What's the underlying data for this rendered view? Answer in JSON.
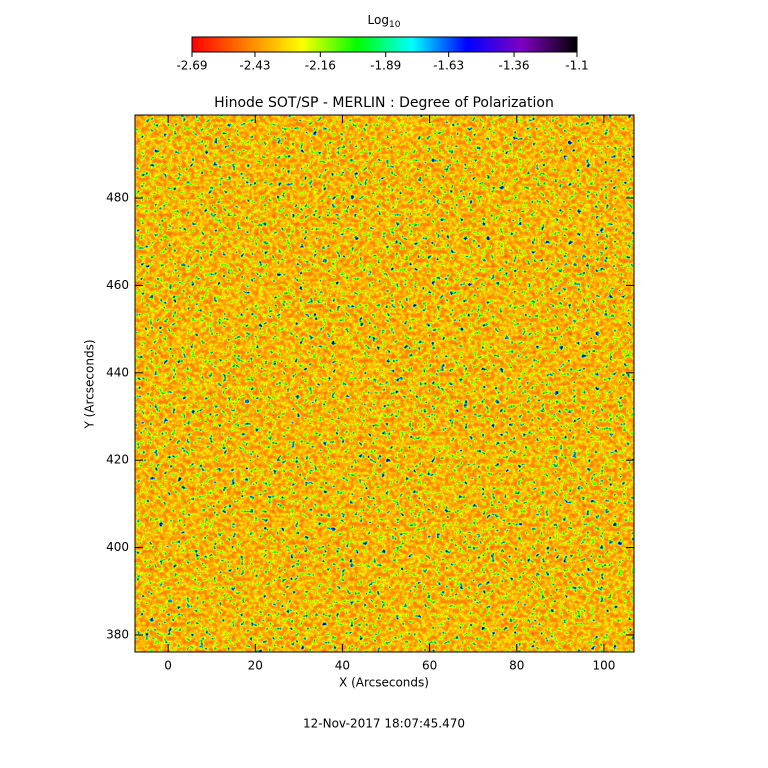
{
  "chart_data": {
    "type": "heatmap",
    "title": "Hinode SOT/SP - MERLIN : Degree of Polarization",
    "x_label": "X (Arcseconds)",
    "y_label": "Y (Arcseconds)",
    "xlim": [
      -7.6,
      106.9
    ],
    "xticks": [
      0,
      20,
      40,
      60,
      80,
      100
    ],
    "ylim": [
      376.1,
      499.0
    ],
    "yticks": [
      380,
      400,
      420,
      440,
      460,
      480
    ],
    "colorbar_label": "Log",
    "colorbar_label_subscript": "10",
    "clim": [
      -2.69,
      -1.1
    ],
    "colorbar_ticks": [
      -2.69,
      -2.43,
      -2.16,
      -1.89,
      -1.63,
      -1.36,
      -1.1
    ],
    "colormap": [
      "#ff0000",
      "#ff8000",
      "#ffff00",
      "#00ff00",
      "#00ffff",
      "#0000ff",
      "#8000c0",
      "#000000"
    ],
    "timestamp": "12-Nov-2017 18:07:45.470"
  }
}
